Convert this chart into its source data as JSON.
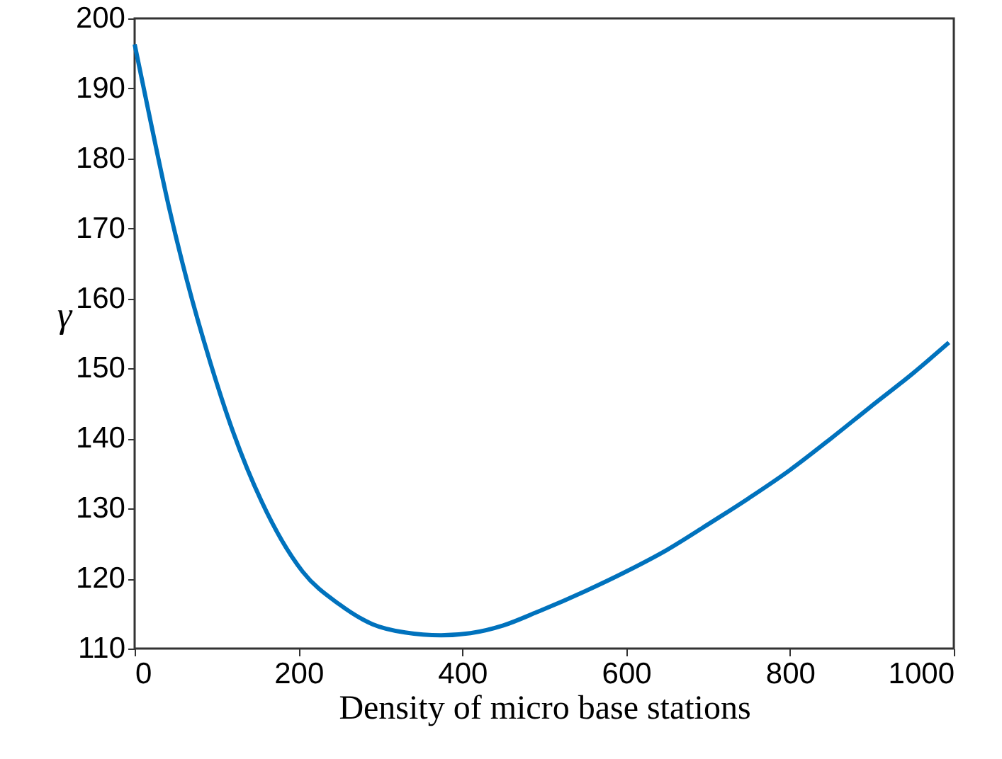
{
  "chart_data": {
    "type": "line",
    "xlabel": "Density of micro base stations",
    "ylabel": "γ",
    "x": [
      0,
      20,
      41,
      64,
      92,
      120,
      155,
      205,
      250,
      290,
      330,
      374,
      410,
      450,
      491,
      550,
      600,
      650,
      694,
      750,
      800,
      850,
      897,
      950,
      994
    ],
    "series": [
      {
        "color": "#0072bd",
        "values": [
          196.3,
          185,
          173.5,
          162.5,
          151,
          141,
          131,
          121,
          116.3,
          113.5,
          112.3,
          111.9,
          112.2,
          113.3,
          115.2,
          118.2,
          121,
          124.1,
          127.3,
          131.5,
          135.5,
          140,
          144.4,
          149.3,
          153.7
        ]
      }
    ],
    "xlim": [
      0,
      1000
    ],
    "xticks": [
      0,
      200,
      400,
      600,
      800,
      1000
    ],
    "ylim": [
      110,
      200
    ],
    "yticks": [
      110,
      120,
      130,
      140,
      150,
      160,
      170,
      180,
      190,
      200
    ],
    "grid": false,
    "marker": "none",
    "line_style": "solid"
  }
}
